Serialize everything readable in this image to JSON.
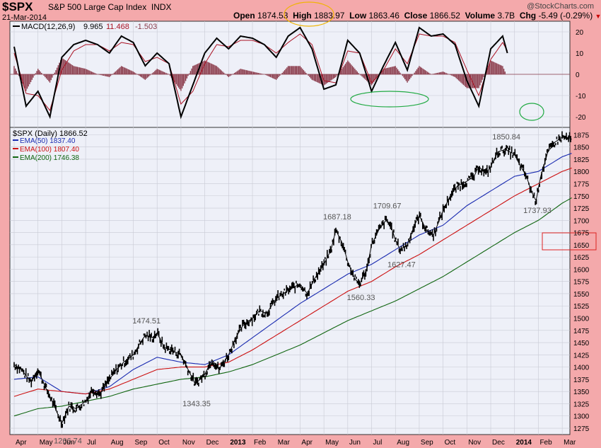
{
  "header": {
    "symbol": "$SPX",
    "name": "S&P 500 Large Cap Index",
    "exchange": "INDX",
    "date": "21-Mar-2014",
    "open_label": "Open",
    "open": "1874.53",
    "high_label": "High",
    "high": "1883.97",
    "low_label": "Low",
    "low": "1863.46",
    "close_label": "Close",
    "close": "1866.52",
    "volume_label": "Volume",
    "volume": "3.7B",
    "chg_label": "Chg",
    "chg": "-5.49 (-0.29%)",
    "brand": "@StockCharts.com"
  },
  "colors": {
    "frame": "#f4a9ab",
    "panel_bg": "#eef0f8",
    "grid": "#c8cad4",
    "price": "#000000",
    "ema50": "#1a2bb0",
    "ema100": "#cc1111",
    "ema200": "#116611",
    "macd": "#000000",
    "signal": "#aa1122",
    "histogram": "#8a3a4a",
    "callout_high": "#f0b400",
    "callout_trough": "#22aa44",
    "callout_box": "#dd2222"
  },
  "chart_data": [
    {
      "type": "line",
      "panel": "MACD",
      "legend": {
        "label": "MACD(12,26,9)",
        "macd_value": "9.965",
        "signal_value": "11.468",
        "hist_value": "-1.503"
      },
      "ylim": [
        -25,
        25
      ],
      "yticks": [
        20,
        10,
        0,
        -10,
        -20
      ],
      "series": [
        {
          "name": "MACD",
          "points": [
            [
              0,
              13
            ],
            [
              0.5,
              -15
            ],
            [
              1,
              -8
            ],
            [
              1.5,
              -20
            ],
            [
              2,
              8
            ],
            [
              2.5,
              14
            ],
            [
              3,
              16
            ],
            [
              3.5,
              14
            ],
            [
              4,
              10
            ],
            [
              4.5,
              18
            ],
            [
              5,
              15
            ],
            [
              5.5,
              4
            ],
            [
              6,
              10
            ],
            [
              6.5,
              5
            ],
            [
              7,
              -20
            ],
            [
              7.5,
              -5
            ],
            [
              8,
              10
            ],
            [
              8.5,
              17
            ],
            [
              9,
              12
            ],
            [
              9.5,
              18
            ],
            [
              10,
              17
            ],
            [
              10.5,
              14
            ],
            [
              11,
              8
            ],
            [
              11.5,
              18
            ],
            [
              12,
              22
            ],
            [
              12.5,
              12
            ],
            [
              13,
              -7
            ],
            [
              13.5,
              -5
            ],
            [
              14,
              16
            ],
            [
              14.5,
              10
            ],
            [
              15,
              -8
            ],
            [
              15.5,
              4
            ],
            [
              16,
              15
            ],
            [
              16.5,
              2
            ],
            [
              17,
              22
            ],
            [
              17.5,
              18
            ],
            [
              18,
              19
            ],
            [
              18.5,
              14
            ],
            [
              19,
              -3
            ],
            [
              19.5,
              -15
            ],
            [
              20,
              12
            ],
            [
              20.5,
              18
            ],
            [
              20.7,
              10
            ]
          ]
        },
        {
          "name": "Signal",
          "points": [
            [
              0,
              10
            ],
            [
              0.5,
              -9
            ],
            [
              1,
              -10
            ],
            [
              1.5,
              -17
            ],
            [
              2,
              2
            ],
            [
              2.5,
              11
            ],
            [
              3,
              14
            ],
            [
              3.5,
              14
            ],
            [
              4,
              11
            ],
            [
              4.5,
              15
            ],
            [
              5,
              14
            ],
            [
              5.5,
              6
            ],
            [
              6,
              8
            ],
            [
              6.5,
              5
            ],
            [
              7,
              -14
            ],
            [
              7.5,
              -8
            ],
            [
              8,
              5
            ],
            [
              8.5,
              14
            ],
            [
              9,
              13
            ],
            [
              9.5,
              16
            ],
            [
              10,
              16
            ],
            [
              10.5,
              14
            ],
            [
              11,
              10
            ],
            [
              11.5,
              15
            ],
            [
              12,
              19
            ],
            [
              12.5,
              14
            ],
            [
              13,
              -3
            ],
            [
              13.5,
              -4
            ],
            [
              14,
              11
            ],
            [
              14.5,
              10
            ],
            [
              15,
              -4
            ],
            [
              15.5,
              2
            ],
            [
              16,
              12
            ],
            [
              16.5,
              5
            ],
            [
              17,
              19
            ],
            [
              17.5,
              18
            ],
            [
              18,
              18
            ],
            [
              18.5,
              15
            ],
            [
              19,
              2
            ],
            [
              19.5,
              -10
            ],
            [
              20,
              7
            ],
            [
              20.5,
              15
            ],
            [
              20.7,
              11
            ]
          ]
        }
      ]
    },
    {
      "type": "line",
      "panel": "Price",
      "legend_title": "$SPX (Daily) 1866.52",
      "xlabel": "",
      "ylabel": "",
      "x_categories": [
        "Apr",
        "May",
        "Jun",
        "Jul",
        "Aug",
        "Sep",
        "Oct",
        "Nov",
        "Dec",
        "2013",
        "Feb",
        "Mar",
        "Apr",
        "May",
        "Jun",
        "Jul",
        "Aug",
        "Sep",
        "Oct",
        "Nov",
        "Dec",
        "2014",
        "Feb",
        "Mar"
      ],
      "ylim": [
        1262,
        1890
      ],
      "yticks": [
        1875,
        1850,
        1825,
        1800,
        1775,
        1750,
        1725,
        1700,
        1675,
        1650,
        1625,
        1600,
        1575,
        1550,
        1525,
        1500,
        1475,
        1450,
        1425,
        1400,
        1375,
        1350,
        1325,
        1300,
        1275
      ],
      "series": [
        {
          "name": "$SPX (Daily)",
          "points": [
            [
              0,
              1405
            ],
            [
              0.3,
              1395
            ],
            [
              0.7,
              1370
            ],
            [
              1,
              1395
            ],
            [
              1.3,
              1360
            ],
            [
              1.6,
              1330
            ],
            [
              2,
              1285
            ],
            [
              2.3,
              1320
            ],
            [
              2.6,
              1315
            ],
            [
              3,
              1330
            ],
            [
              3.3,
              1355
            ],
            [
              3.6,
              1345
            ],
            [
              4,
              1375
            ],
            [
              4.3,
              1395
            ],
            [
              4.6,
              1410
            ],
            [
              5,
              1425
            ],
            [
              5.3,
              1450
            ],
            [
              5.5,
              1465
            ],
            [
              5.8,
              1460
            ],
            [
              6,
              1470
            ],
            [
              6.3,
              1440
            ],
            [
              6.6,
              1435
            ],
            [
              7,
              1425
            ],
            [
              7.3,
              1395
            ],
            [
              7.6,
              1365
            ],
            [
              8,
              1385
            ],
            [
              8.3,
              1415
            ],
            [
              8.6,
              1395
            ],
            [
              9,
              1425
            ],
            [
              9.3,
              1460
            ],
            [
              9.6,
              1485
            ],
            [
              10,
              1500
            ],
            [
              10.3,
              1515
            ],
            [
              10.6,
              1510
            ],
            [
              11,
              1540
            ],
            [
              11.3,
              1550
            ],
            [
              11.6,
              1560
            ],
            [
              12,
              1570
            ],
            [
              12.3,
              1550
            ],
            [
              12.6,
              1580
            ],
            [
              13,
              1610
            ],
            [
              13.3,
              1640
            ],
            [
              13.5,
              1680
            ],
            [
              13.8,
              1650
            ],
            [
              14,
              1615
            ],
            [
              14.3,
              1580
            ],
            [
              14.5,
              1570
            ],
            [
              14.8,
              1600
            ],
            [
              15,
              1650
            ],
            [
              15.3,
              1680
            ],
            [
              15.6,
              1700
            ],
            [
              15.8,
              1690
            ],
            [
              16,
              1660
            ],
            [
              16.2,
              1640
            ],
            [
              16.5,
              1650
            ],
            [
              16.8,
              1690
            ],
            [
              17,
              1710
            ],
            [
              17.3,
              1680
            ],
            [
              17.6,
              1670
            ],
            [
              18,
              1720
            ],
            [
              18.3,
              1750
            ],
            [
              18.6,
              1770
            ],
            [
              19,
              1780
            ],
            [
              19.3,
              1790
            ],
            [
              19.5,
              1810
            ],
            [
              19.8,
              1795
            ],
            [
              20,
              1810
            ],
            [
              20.3,
              1840
            ],
            [
              20.6,
              1845
            ],
            [
              21,
              1835
            ],
            [
              21.2,
              1815
            ],
            [
              21.5,
              1790
            ],
            [
              21.7,
              1760
            ],
            [
              21.9,
              1740
            ],
            [
              22.1,
              1790
            ],
            [
              22.4,
              1840
            ],
            [
              22.7,
              1860
            ],
            [
              23,
              1870
            ],
            [
              23.4,
              1866
            ]
          ]
        },
        {
          "name": "EMA(50)",
          "value": "1837.40",
          "points": [
            [
              0,
              1375
            ],
            [
              1,
              1380
            ],
            [
              2,
              1350
            ],
            [
              3,
              1345
            ],
            [
              4,
              1360
            ],
            [
              5,
              1395
            ],
            [
              6,
              1420
            ],
            [
              7,
              1410
            ],
            [
              8,
              1405
            ],
            [
              9,
              1425
            ],
            [
              10,
              1460
            ],
            [
              11,
              1495
            ],
            [
              12,
              1530
            ],
            [
              13,
              1560
            ],
            [
              14,
              1590
            ],
            [
              15,
              1610
            ],
            [
              16,
              1640
            ],
            [
              17,
              1670
            ],
            [
              18,
              1690
            ],
            [
              19,
              1730
            ],
            [
              20,
              1760
            ],
            [
              21,
              1790
            ],
            [
              22,
              1800
            ],
            [
              23,
              1830
            ],
            [
              23.4,
              1837
            ]
          ]
        },
        {
          "name": "EMA(100)",
          "value": "1807.40",
          "points": [
            [
              0,
              1340
            ],
            [
              1,
              1355
            ],
            [
              2,
              1350
            ],
            [
              3,
              1345
            ],
            [
              4,
              1355
            ],
            [
              5,
              1375
            ],
            [
              6,
              1395
            ],
            [
              7,
              1400
            ],
            [
              8,
              1400
            ],
            [
              9,
              1410
            ],
            [
              10,
              1435
            ],
            [
              11,
              1465
            ],
            [
              12,
              1495
            ],
            [
              13,
              1525
            ],
            [
              14,
              1555
            ],
            [
              15,
              1575
            ],
            [
              16,
              1605
            ],
            [
              17,
              1630
            ],
            [
              18,
              1660
            ],
            [
              19,
              1690
            ],
            [
              20,
              1720
            ],
            [
              21,
              1750
            ],
            [
              22,
              1775
            ],
            [
              23,
              1800
            ],
            [
              23.4,
              1807
            ]
          ]
        },
        {
          "name": "EMA(200)",
          "value": "1746.38",
          "points": [
            [
              0,
              1300
            ],
            [
              1,
              1315
            ],
            [
              2,
              1320
            ],
            [
              3,
              1330
            ],
            [
              4,
              1340
            ],
            [
              5,
              1355
            ],
            [
              6,
              1365
            ],
            [
              7,
              1375
            ],
            [
              8,
              1380
            ],
            [
              9,
              1390
            ],
            [
              10,
              1405
            ],
            [
              11,
              1425
            ],
            [
              12,
              1445
            ],
            [
              13,
              1470
            ],
            [
              14,
              1495
            ],
            [
              15,
              1515
            ],
            [
              16,
              1535
            ],
            [
              17,
              1560
            ],
            [
              18,
              1585
            ],
            [
              19,
              1615
            ],
            [
              20,
              1645
            ],
            [
              21,
              1675
            ],
            [
              22,
              1700
            ],
            [
              23,
              1735
            ],
            [
              23.4,
              1746
            ]
          ]
        }
      ],
      "annotations": [
        {
          "text": "1266.74",
          "x": 2.2,
          "y": 1266.74
        },
        {
          "text": "1474.51",
          "x": 5.5,
          "y": 1474.51
        },
        {
          "text": "1343.35",
          "x": 7.6,
          "y": 1343.35
        },
        {
          "text": "1687.18",
          "x": 13.5,
          "y": 1687.18
        },
        {
          "text": "1560.33",
          "x": 14.5,
          "y": 1560.33
        },
        {
          "text": "1709.67",
          "x": 15.6,
          "y": 1709.67
        },
        {
          "text": "1627.47",
          "x": 16.2,
          "y": 1627.47
        },
        {
          "text": "1850.84",
          "x": 20.6,
          "y": 1850.84
        },
        {
          "text": "1737.93",
          "x": 21.9,
          "y": 1737.93
        }
      ]
    }
  ]
}
